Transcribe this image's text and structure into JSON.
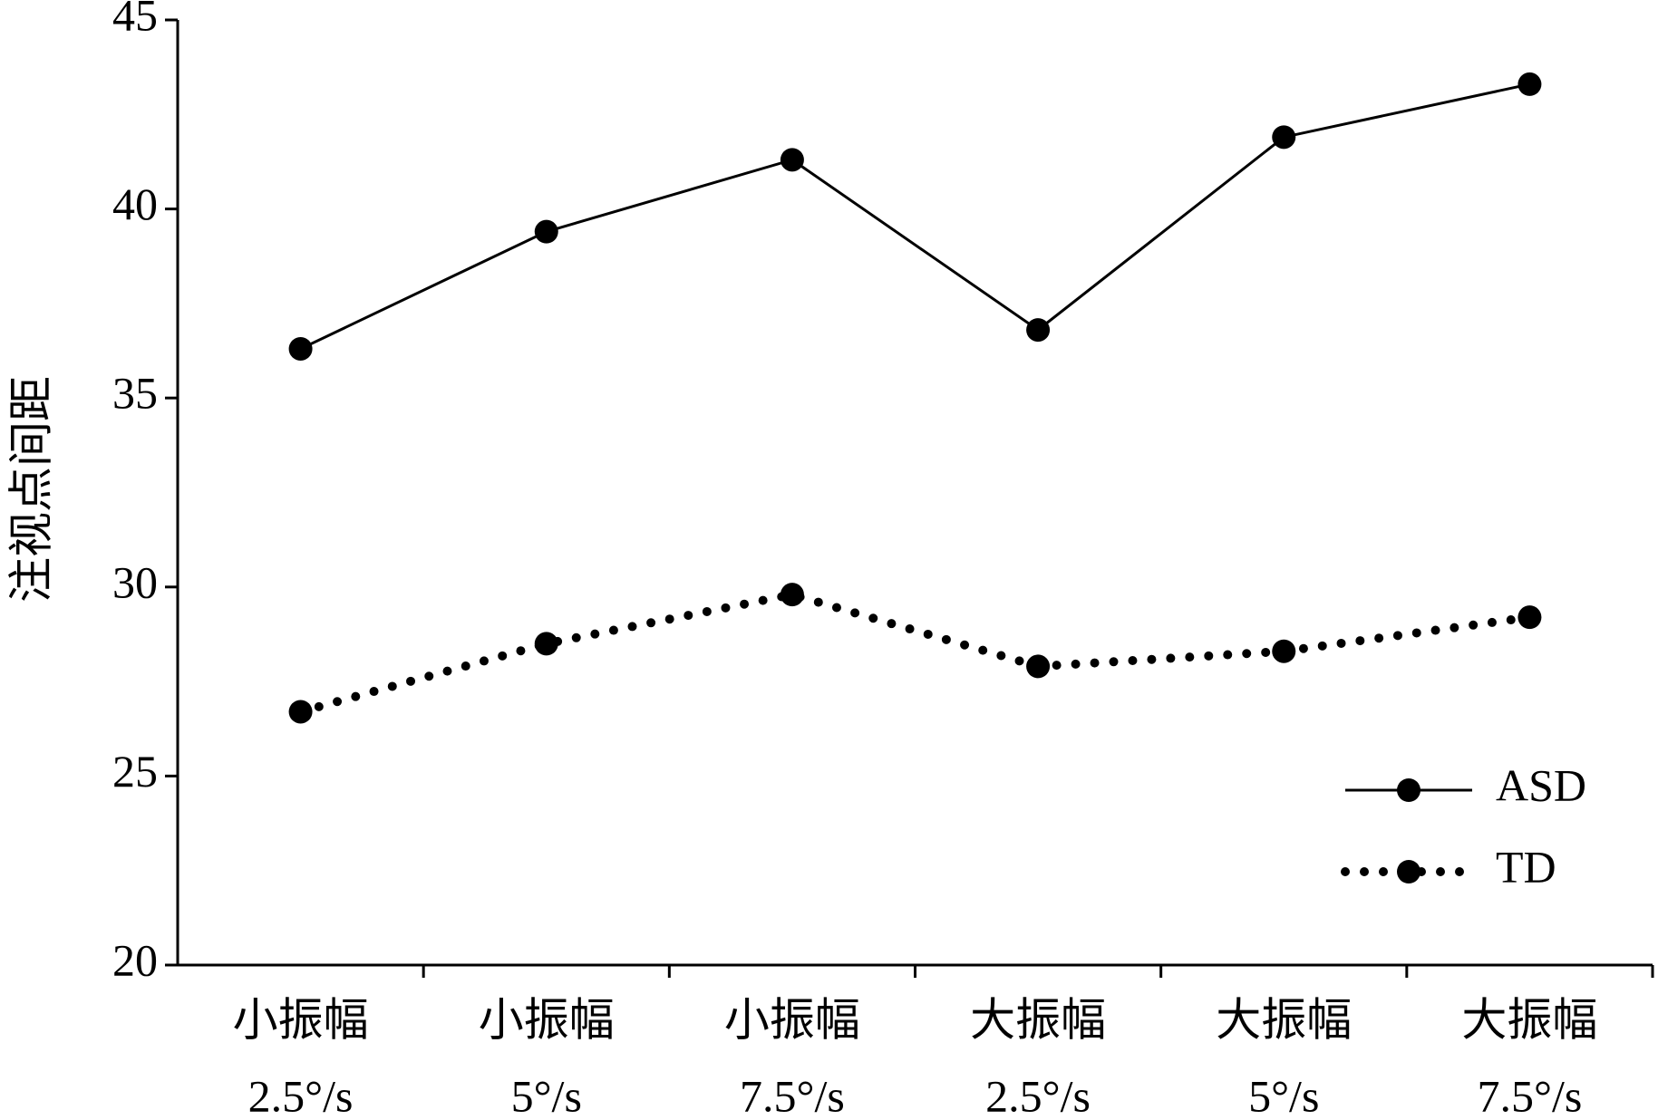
{
  "chart_data": {
    "type": "line",
    "y_label": "注视点间距",
    "categories": [
      [
        "小振幅",
        "2.5°/s"
      ],
      [
        "小振幅",
        "5°/s"
      ],
      [
        "小振幅",
        "7.5°/s"
      ],
      [
        "大振幅",
        "2.5°/s"
      ],
      [
        "大振幅",
        "5°/s"
      ],
      [
        "大振幅",
        "7.5°/s"
      ]
    ],
    "series": [
      {
        "name": "ASD",
        "color": "#000000",
        "dash": "solid",
        "values": [
          36.3,
          39.4,
          41.3,
          36.8,
          41.9,
          43.3
        ]
      },
      {
        "name": "TD",
        "color": "#000000",
        "dash": "dotted",
        "values": [
          26.7,
          28.5,
          29.8,
          27.9,
          28.3,
          29.2
        ]
      }
    ],
    "ylim": [
      20,
      45
    ],
    "yticks": [
      20,
      25,
      30,
      35,
      40,
      45
    ],
    "legend": "lower-right",
    "grid": false
  }
}
